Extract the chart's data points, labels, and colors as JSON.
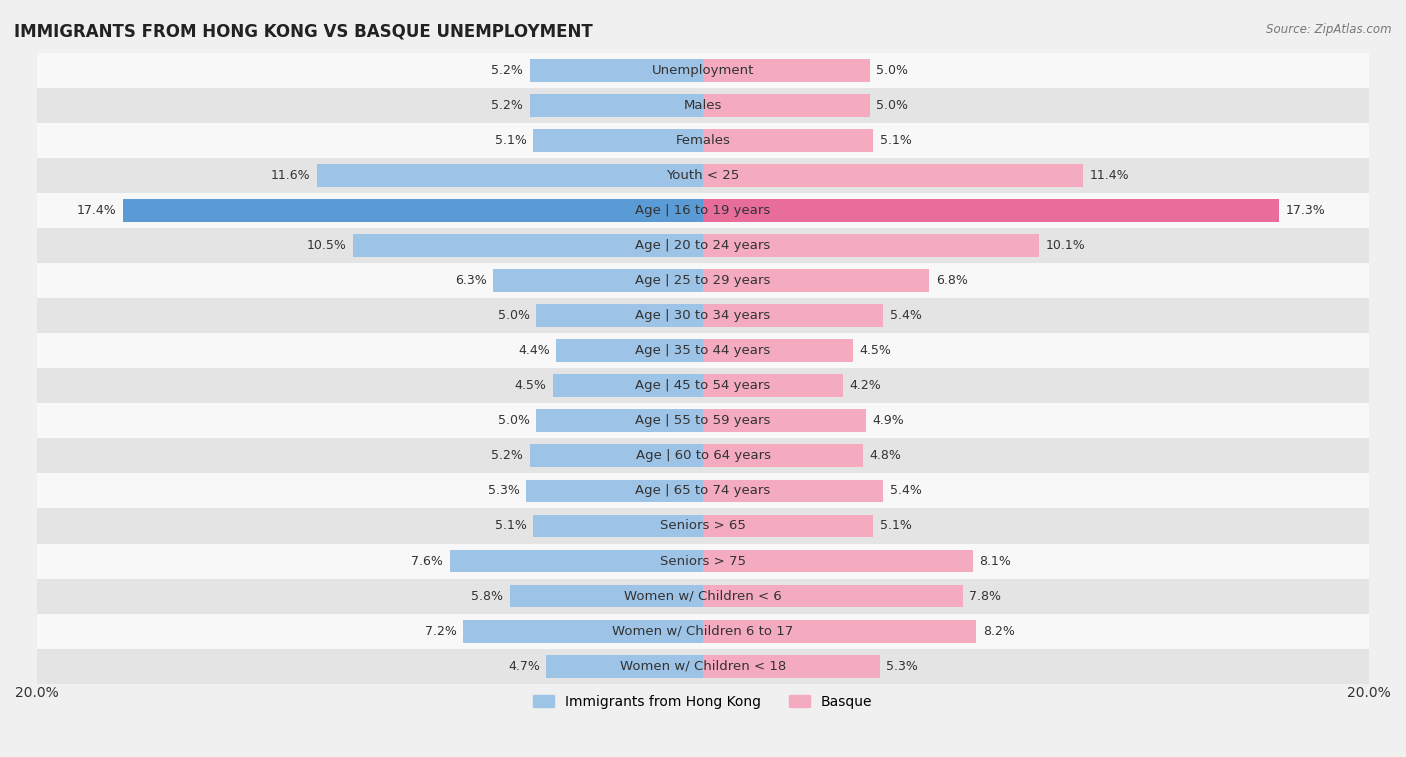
{
  "title": "IMMIGRANTS FROM HONG KONG VS BASQUE UNEMPLOYMENT",
  "source": "Source: ZipAtlas.com",
  "categories": [
    "Unemployment",
    "Males",
    "Females",
    "Youth < 25",
    "Age | 16 to 19 years",
    "Age | 20 to 24 years",
    "Age | 25 to 29 years",
    "Age | 30 to 34 years",
    "Age | 35 to 44 years",
    "Age | 45 to 54 years",
    "Age | 55 to 59 years",
    "Age | 60 to 64 years",
    "Age | 65 to 74 years",
    "Seniors > 65",
    "Seniors > 75",
    "Women w/ Children < 6",
    "Women w/ Children 6 to 17",
    "Women w/ Children < 18"
  ],
  "hk_values": [
    5.2,
    5.2,
    5.1,
    11.6,
    17.4,
    10.5,
    6.3,
    5.0,
    4.4,
    4.5,
    5.0,
    5.2,
    5.3,
    5.1,
    7.6,
    5.8,
    7.2,
    4.7
  ],
  "basque_values": [
    5.0,
    5.0,
    5.1,
    11.4,
    17.3,
    10.1,
    6.8,
    5.4,
    4.5,
    4.2,
    4.9,
    4.8,
    5.4,
    5.1,
    8.1,
    7.8,
    8.2,
    5.3
  ],
  "hk_color": "#9DC3E6",
  "basque_color": "#F4AABF",
  "hk_highlight_color": "#5B9BD5",
  "basque_highlight_color": "#E96D99",
  "xlim": 20.0,
  "bar_height": 0.65,
  "background_color": "#f0f0f0",
  "row_color_light": "#f8f8f8",
  "row_color_dark": "#e4e4e4",
  "label_fontsize": 9.5,
  "value_fontsize": 9.0,
  "title_fontsize": 12,
  "legend_hk": "Immigrants from Hong Kong",
  "legend_basque": "Basque"
}
